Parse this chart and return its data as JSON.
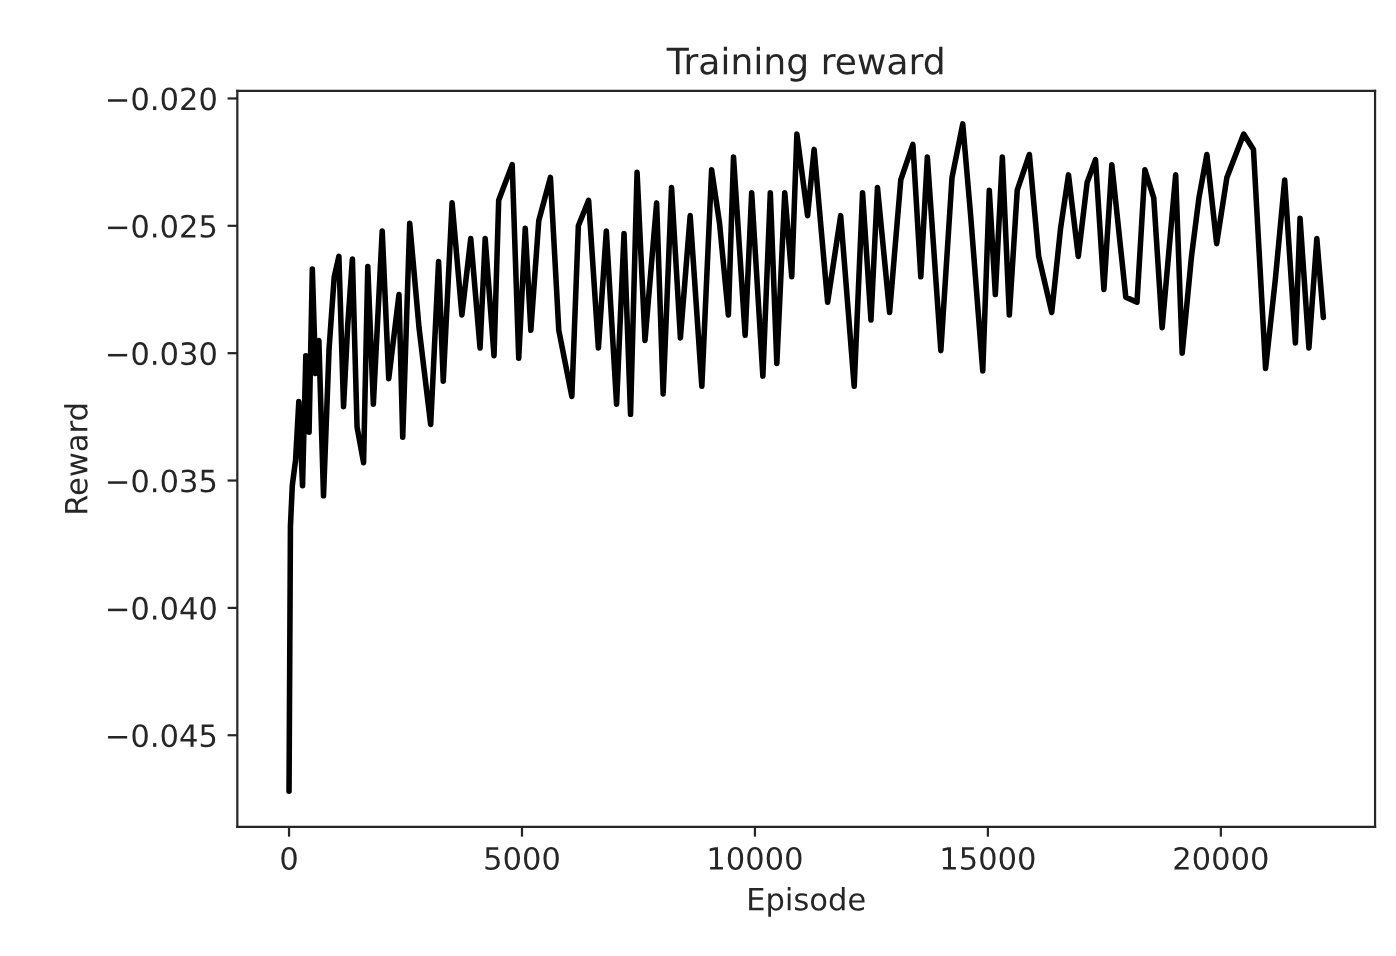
{
  "chart_data": {
    "type": "line",
    "title": "Training reward",
    "xlabel": "Episode",
    "ylabel": "Reward",
    "xlim": [
      -1110,
      23310
    ],
    "ylim": [
      -0.0486,
      -0.0197
    ],
    "xticks": [
      0,
      5000,
      10000,
      15000,
      20000
    ],
    "yticks": [
      {
        "value": -0.045,
        "label": "−0.045"
      },
      {
        "value": -0.04,
        "label": "−0.040"
      },
      {
        "value": -0.035,
        "label": "−0.035"
      },
      {
        "value": -0.03,
        "label": "−0.030"
      },
      {
        "value": -0.025,
        "label": "−0.025"
      },
      {
        "value": -0.02,
        "label": "−0.020"
      }
    ],
    "grid": false,
    "legend": false,
    "marker": "none",
    "line_style": "solid",
    "series": [
      {
        "color": "#000000",
        "x": [
          0,
          30,
          70,
          140,
          210,
          290,
          360,
          430,
          500,
          570,
          640,
          740,
          860,
          970,
          1070,
          1170,
          1260,
          1360,
          1460,
          1600,
          1690,
          1810,
          2000,
          2140,
          2360,
          2440,
          2590,
          2790,
          3040,
          3210,
          3310,
          3500,
          3710,
          3900,
          4100,
          4210,
          4400,
          4500,
          4790,
          4930,
          5070,
          5190,
          5360,
          5610,
          5790,
          6070,
          6210,
          6430,
          6640,
          6810,
          7030,
          7190,
          7330,
          7470,
          7640,
          7890,
          8030,
          8210,
          8400,
          8610,
          8860,
          9070,
          9240,
          9430,
          9540,
          9790,
          9930,
          10170,
          10330,
          10470,
          10640,
          10790,
          10900,
          11130,
          11270,
          11560,
          11840,
          12130,
          12310,
          12490,
          12630,
          12890,
          13130,
          13390,
          13560,
          13700,
          13990,
          14230,
          14460,
          14630,
          14890,
          15030,
          15160,
          15310,
          15460,
          15630,
          15890,
          16090,
          16370,
          16560,
          16730,
          16940,
          17130,
          17310,
          17490,
          17660,
          17960,
          18200,
          18370,
          18560,
          18740,
          19030,
          19170,
          19370,
          19530,
          19700,
          19910,
          20130,
          20490,
          20700,
          20960,
          21170,
          21370,
          21600,
          21700,
          21890,
          22060,
          22200
        ],
        "values": [
          -0.0472,
          -0.0368,
          -0.0352,
          -0.0342,
          -0.0319,
          -0.0352,
          -0.0301,
          -0.0331,
          -0.0267,
          -0.0308,
          -0.0295,
          -0.0356,
          -0.0298,
          -0.027,
          -0.0262,
          -0.0321,
          -0.0289,
          -0.0263,
          -0.0329,
          -0.0343,
          -0.0266,
          -0.032,
          -0.0252,
          -0.031,
          -0.0277,
          -0.0333,
          -0.0249,
          -0.029,
          -0.0328,
          -0.0264,
          -0.0311,
          -0.0241,
          -0.0285,
          -0.0255,
          -0.0298,
          -0.0255,
          -0.0301,
          -0.024,
          -0.0226,
          -0.0302,
          -0.0251,
          -0.0291,
          -0.0248,
          -0.0231,
          -0.0291,
          -0.0317,
          -0.025,
          -0.024,
          -0.0298,
          -0.0252,
          -0.032,
          -0.0253,
          -0.0324,
          -0.0229,
          -0.0295,
          -0.0241,
          -0.0316,
          -0.0235,
          -0.0294,
          -0.0246,
          -0.0313,
          -0.0228,
          -0.0249,
          -0.0285,
          -0.0223,
          -0.0293,
          -0.0237,
          -0.0309,
          -0.0237,
          -0.0304,
          -0.0237,
          -0.027,
          -0.0214,
          -0.0246,
          -0.022,
          -0.028,
          -0.0246,
          -0.0313,
          -0.0237,
          -0.0287,
          -0.0235,
          -0.0284,
          -0.0232,
          -0.0218,
          -0.027,
          -0.0223,
          -0.0299,
          -0.0231,
          -0.021,
          -0.0246,
          -0.0307,
          -0.0236,
          -0.0277,
          -0.0223,
          -0.0285,
          -0.0236,
          -0.0222,
          -0.0262,
          -0.0284,
          -0.0251,
          -0.023,
          -0.0262,
          -0.0233,
          -0.0224,
          -0.0275,
          -0.0226,
          -0.0278,
          -0.028,
          -0.0228,
          -0.0239,
          -0.029,
          -0.023,
          -0.03,
          -0.0262,
          -0.0239,
          -0.0222,
          -0.0257,
          -0.0231,
          -0.0214,
          -0.022,
          -0.0306,
          -0.0271,
          -0.0232,
          -0.0296,
          -0.0247,
          -0.0298,
          -0.0255,
          -0.0286
        ]
      }
    ]
  }
}
